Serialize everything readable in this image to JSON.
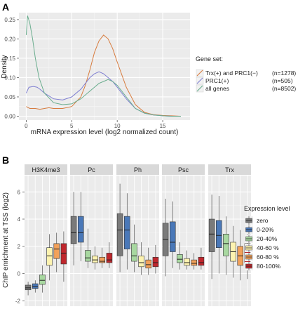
{
  "panel_a": {
    "letter": "A"
  },
  "panel_b": {
    "letter": "B"
  },
  "chart_data": [
    {
      "type": "line",
      "panel": "A",
      "xlabel": "mRNA expression level (log2 normalized count)",
      "ylabel": "Density",
      "xlim": [
        -0.8,
        18
      ],
      "ylim": [
        -0.01,
        0.268
      ],
      "x_ticks": [
        0,
        5,
        10,
        15
      ],
      "y_ticks": [
        0.0,
        0.05,
        0.1,
        0.15,
        0.2,
        0.25
      ],
      "y_tick_labels": [
        "0.00",
        "0.05",
        "0.10",
        "0.15",
        "0.20",
        "0.25"
      ],
      "grid": true,
      "legend": {
        "title": "Gene set:",
        "position": "right",
        "entries": [
          "Trx(+) and PRC1(−)",
          "PRC1(+)",
          "all genes"
        ],
        "counts": [
          "(n=1278)",
          "(n=505)",
          "(n=8502)"
        ]
      },
      "series": [
        {
          "name": "Trx(+) and PRC1(−)",
          "color": "#d77c3f",
          "x": [
            0,
            0.4,
            1,
            1.5,
            2,
            2.5,
            3,
            3.5,
            4,
            5,
            6,
            6.5,
            7,
            7.5,
            8,
            8.5,
            9,
            9.5,
            10,
            11,
            12,
            13,
            14,
            15,
            16,
            17
          ],
          "y": [
            0.025,
            0.02,
            0.02,
            0.018,
            0.02,
            0.022,
            0.02,
            0.02,
            0.02,
            0.025,
            0.05,
            0.08,
            0.12,
            0.165,
            0.195,
            0.21,
            0.2,
            0.175,
            0.14,
            0.075,
            0.03,
            0.01,
            0.004,
            0.002,
            0.001,
            0.0
          ]
        },
        {
          "name": "PRC1(+)",
          "color": "#7f7fd1",
          "x": [
            0,
            0.3,
            0.8,
            1.2,
            1.5,
            2,
            3,
            4,
            5,
            6,
            7,
            7.5,
            8,
            8.5,
            9,
            9.5,
            10,
            11,
            12,
            13,
            14,
            15,
            16,
            17
          ],
          "y": [
            0.06,
            0.075,
            0.077,
            0.075,
            0.07,
            0.06,
            0.045,
            0.042,
            0.05,
            0.07,
            0.1,
            0.11,
            0.115,
            0.11,
            0.1,
            0.09,
            0.075,
            0.045,
            0.02,
            0.008,
            0.003,
            0.001,
            0.0,
            0.0
          ]
        },
        {
          "name": "all genes",
          "color": "#6aad8e",
          "x": [
            0,
            0.15,
            0.4,
            0.7,
            1,
            1.4,
            2,
            3,
            4,
            5,
            6,
            7,
            8,
            8.5,
            9,
            9.5,
            10,
            11,
            12,
            13,
            14,
            15,
            16,
            17
          ],
          "y": [
            0.21,
            0.26,
            0.24,
            0.2,
            0.15,
            0.1,
            0.06,
            0.035,
            0.03,
            0.032,
            0.045,
            0.065,
            0.085,
            0.09,
            0.095,
            0.09,
            0.08,
            0.05,
            0.02,
            0.008,
            0.003,
            0.001,
            0.0,
            0.0
          ]
        }
      ]
    },
    {
      "type": "box",
      "panel": "B",
      "ylabel": "ChIP enrichment at TSS (log2)",
      "ylim": [
        -2.4,
        7.2
      ],
      "y_ticks": [
        -2,
        0,
        2,
        4,
        6
      ],
      "grid": true,
      "facets": [
        "H3K4me3",
        "Pc",
        "Ph",
        "Psc",
        "Trx"
      ],
      "legend": {
        "title": "Expression level",
        "position": "right",
        "entries": [
          "zero",
          "0-20%",
          "20-40%",
          "40-60 %",
          "60-80 %",
          "80-100%"
        ],
        "colors": [
          "#7a7a7a",
          "#4a78b8",
          "#a8d8a0",
          "#fdf3b0",
          "#f2a15a",
          "#c0272d"
        ]
      },
      "boxes": {
        "H3K4me3": [
          {
            "min": -1.6,
            "q1": -1.2,
            "median": -1.05,
            "q3": -0.85,
            "max": -0.6
          },
          {
            "min": -1.4,
            "q1": -1.1,
            "median": -0.95,
            "q3": -0.75,
            "max": -0.5
          },
          {
            "min": -1.4,
            "q1": -0.8,
            "median": -0.5,
            "q3": -0.1,
            "max": 0.6
          },
          {
            "min": -0.5,
            "q1": 0.6,
            "median": 1.3,
            "q3": 1.9,
            "max": 2.9
          },
          {
            "min": 0.1,
            "q1": 1.1,
            "median": 1.8,
            "q3": 2.2,
            "max": 3.0
          },
          {
            "min": -0.6,
            "q1": 0.7,
            "median": 1.5,
            "q3": 2.2,
            "max": 3.1
          }
        ],
        "Pc": [
          {
            "min": 0.6,
            "q1": 2.2,
            "median": 3.0,
            "q3": 4.2,
            "max": 6.0
          },
          {
            "min": 0.9,
            "q1": 2.3,
            "median": 3.0,
            "q3": 4.2,
            "max": 6.0
          },
          {
            "min": 0.4,
            "q1": 0.9,
            "median": 1.15,
            "q3": 1.7,
            "max": 3.3
          },
          {
            "min": 0.3,
            "q1": 0.8,
            "median": 1.0,
            "q3": 1.3,
            "max": 2.0
          },
          {
            "min": 0.4,
            "q1": 0.8,
            "median": 0.9,
            "q3": 1.2,
            "max": 1.9
          },
          {
            "min": 0.4,
            "q1": 0.8,
            "median": 1.0,
            "q3": 1.5,
            "max": 2.3
          }
        ],
        "Ph": [
          {
            "min": 0.1,
            "q1": 1.3,
            "median": 3.2,
            "q3": 4.4,
            "max": 6.6
          },
          {
            "min": 0.3,
            "q1": 1.8,
            "median": 3.2,
            "q3": 4.2,
            "max": 5.9
          },
          {
            "min": 0.1,
            "q1": 0.9,
            "median": 1.3,
            "q3": 2.2,
            "max": 3.6
          },
          {
            "min": -0.1,
            "q1": 0.5,
            "median": 0.8,
            "q3": 1.3,
            "max": 2.3
          },
          {
            "min": -0.1,
            "q1": 0.4,
            "median": 0.65,
            "q3": 1.0,
            "max": 1.9
          },
          {
            "min": 0.0,
            "q1": 0.5,
            "median": 0.8,
            "q3": 1.2,
            "max": 2.1
          }
        ],
        "Psc": [
          {
            "min": -0.2,
            "q1": 1.3,
            "median": 2.5,
            "q3": 3.7,
            "max": 5.5
          },
          {
            "min": 0.4,
            "q1": 1.6,
            "median": 2.3,
            "q3": 3.8,
            "max": 5.3
          },
          {
            "min": 0.3,
            "q1": 0.8,
            "median": 1.05,
            "q3": 1.4,
            "max": 2.3
          },
          {
            "min": 0.3,
            "q1": 0.6,
            "median": 0.8,
            "q3": 1.1,
            "max": 1.7
          },
          {
            "min": 0.3,
            "q1": 0.6,
            "median": 0.75,
            "q3": 1.0,
            "max": 1.5
          },
          {
            "min": 0.3,
            "q1": 0.6,
            "median": 0.8,
            "q3": 1.2,
            "max": 1.9
          }
        ],
        "Trx": [
          {
            "min": -0.4,
            "q1": 1.6,
            "median": 2.9,
            "q3": 4.0,
            "max": 5.8
          },
          {
            "min": 0.0,
            "q1": 1.9,
            "median": 2.8,
            "q3": 3.9,
            "max": 5.7
          },
          {
            "min": -0.1,
            "q1": 1.3,
            "median": 2.2,
            "q3": 2.9,
            "max": 4.2
          },
          {
            "min": -0.3,
            "q1": 0.9,
            "median": 1.6,
            "q3": 2.3,
            "max": 3.5
          },
          {
            "min": -0.5,
            "q1": 0.6,
            "median": 1.3,
            "q3": 2.0,
            "max": 3.2
          },
          {
            "min": -0.4,
            "q1": 0.8,
            "median": 1.5,
            "q3": 2.2,
            "max": 3.4
          }
        ]
      }
    }
  ]
}
